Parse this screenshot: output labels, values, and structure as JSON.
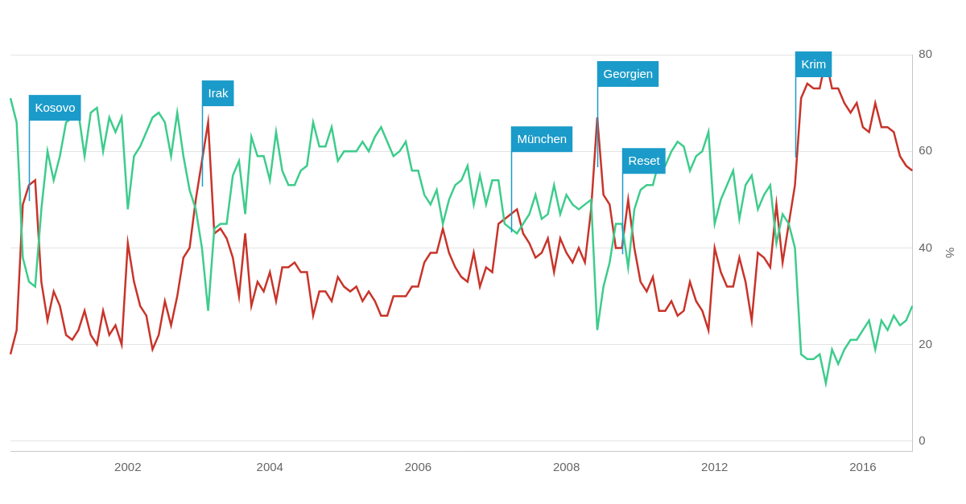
{
  "chart_data": {
    "type": "line",
    "categories": [
      null,
      null,
      null,
      null,
      null,
      null,
      null,
      null,
      null,
      null,
      null,
      null,
      null,
      null,
      null,
      null,
      null,
      null,
      null,
      "2002",
      null,
      null,
      null,
      null,
      null,
      null,
      null,
      null,
      null,
      null,
      null,
      null,
      null,
      null,
      null,
      null,
      null,
      null,
      null,
      null,
      null,
      null,
      "2004",
      null,
      null,
      null,
      null,
      null,
      null,
      null,
      null,
      null,
      null,
      null,
      null,
      null,
      null,
      null,
      null,
      null,
      null,
      null,
      null,
      null,
      null,
      null,
      "2006",
      null,
      null,
      null,
      null,
      null,
      null,
      null,
      null,
      null,
      null,
      null,
      null,
      null,
      null,
      null,
      null,
      null,
      null,
      null,
      null,
      null,
      null,
      null,
      "2008",
      null,
      null,
      null,
      null,
      null,
      null,
      null,
      null,
      null,
      null,
      null,
      null,
      null,
      null,
      null,
      null,
      null,
      null,
      null,
      null,
      null,
      null,
      null,
      "2012",
      null,
      null,
      null,
      null,
      null,
      null,
      null,
      null,
      null,
      null,
      null,
      null,
      null,
      null,
      null,
      null,
      null,
      null,
      null,
      null,
      null,
      null,
      null,
      "2016",
      null,
      null,
      null,
      null,
      null,
      null,
      null,
      null
    ],
    "series": [
      {
        "color": "#3dcc8c",
        "values": [
          71,
          66,
          38,
          33,
          32,
          48,
          60,
          54,
          59,
          66,
          67,
          68,
          59,
          68,
          69,
          60,
          67,
          64,
          67,
          48,
          59,
          61,
          64,
          67,
          68,
          66,
          59,
          68,
          59,
          52,
          48,
          40,
          27,
          44,
          45,
          45,
          55,
          58,
          47,
          63,
          59,
          59,
          54,
          64,
          56,
          53,
          53,
          56,
          57,
          66,
          61,
          61,
          65,
          58,
          60,
          60,
          60,
          62,
          60,
          63,
          65,
          62,
          59,
          60,
          62,
          56,
          56,
          51,
          49,
          52,
          45,
          50,
          53,
          54,
          57,
          49,
          55,
          49,
          54,
          54,
          45,
          44,
          43,
          45,
          47,
          51,
          46,
          47,
          53,
          47,
          51,
          49,
          48,
          49,
          50,
          23,
          32,
          37,
          45,
          45,
          36,
          48,
          52,
          53,
          53,
          58,
          57,
          60,
          62,
          61,
          56,
          59,
          60,
          64,
          45,
          50,
          53,
          56,
          46,
          53,
          55,
          48,
          51,
          53,
          41,
          47,
          45,
          40,
          18,
          17,
          17,
          18,
          12,
          19,
          16,
          19,
          21,
          21,
          23,
          25,
          19,
          25,
          23,
          26,
          24,
          25,
          28
        ]
      },
      {
        "color": "#c8342a",
        "values": [
          18,
          23,
          49,
          53,
          54,
          33,
          25,
          31,
          28,
          22,
          21,
          23,
          27,
          22,
          20,
          27,
          22,
          24,
          20,
          41,
          33,
          28,
          26,
          19,
          22,
          29,
          24,
          30,
          38,
          40,
          50,
          58,
          66,
          43,
          44,
          42,
          38,
          30,
          43,
          28,
          33,
          31,
          35,
          29,
          36,
          36,
          37,
          35,
          35,
          26,
          31,
          31,
          29,
          34,
          32,
          31,
          32,
          29,
          31,
          29,
          26,
          26,
          30,
          30,
          30,
          32,
          32,
          37,
          39,
          39,
          44,
          39,
          36,
          34,
          33,
          39,
          32,
          36,
          35,
          45,
          46,
          47,
          48,
          43,
          41,
          38,
          39,
          42,
          35,
          42,
          39,
          37,
          40,
          37,
          48,
          67,
          51,
          49,
          40,
          40,
          50,
          40,
          33,
          31,
          34,
          27,
          27,
          29,
          26,
          27,
          33,
          29,
          27,
          23,
          40,
          35,
          32,
          32,
          38,
          33,
          25,
          39,
          38,
          36,
          49,
          37,
          45,
          53,
          71,
          74,
          73,
          73,
          79,
          73,
          73,
          70,
          68,
          70,
          65,
          64,
          70,
          65,
          65,
          64,
          59,
          57,
          56
        ]
      }
    ],
    "ylim": [
      -2,
      80
    ],
    "yticks": [
      0,
      20,
      40,
      60,
      80
    ],
    "y_label": "%",
    "grid": true,
    "annotations": [
      {
        "text": "Kosovo",
        "index": 3,
        "y": 69
      },
      {
        "text": "Irak",
        "index": 31,
        "y": 72
      },
      {
        "text": "München",
        "index": 81,
        "y": 62.5
      },
      {
        "text": "Georgien",
        "index": 95,
        "y": 76
      },
      {
        "text": "Reset",
        "index": 99,
        "y": 58
      },
      {
        "text": "Krim",
        "index": 127,
        "y": 78
      }
    ]
  }
}
